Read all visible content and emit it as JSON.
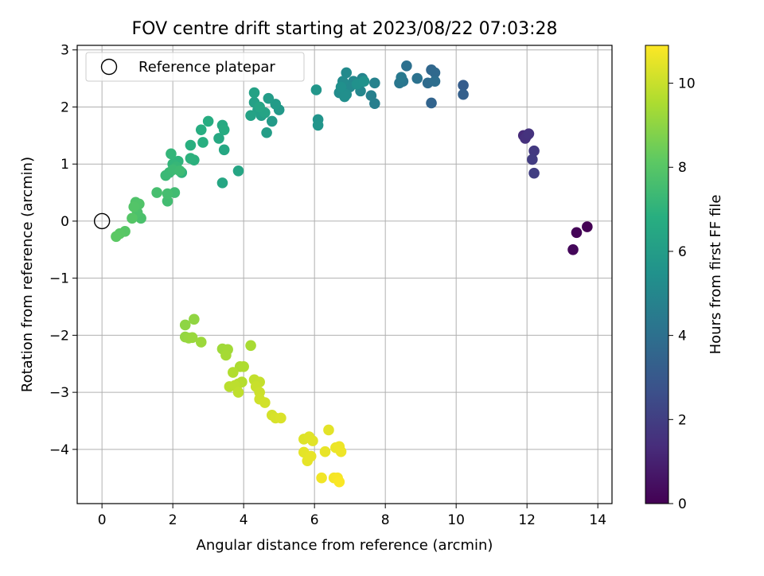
{
  "chart_data": {
    "type": "scatter",
    "title": "FOV centre drift starting at 2023/08/22 07:03:28",
    "xlabel": "Angular distance from reference (arcmin)",
    "ylabel": "Rotation from reference (arcmin)",
    "xlim": [
      -0.7,
      14.4
    ],
    "ylim": [
      -4.95,
      3.08
    ],
    "xticks": [
      0,
      2,
      4,
      6,
      8,
      10,
      12,
      14
    ],
    "yticks": [
      3,
      2,
      1,
      0,
      -1,
      -2,
      -3,
      -4
    ],
    "grid": true,
    "legend": {
      "placement": "top-left",
      "entries": [
        "Reference platepar"
      ]
    },
    "reference_point": {
      "x": 0,
      "y": 0,
      "label": "Reference platepar"
    },
    "colorbar": {
      "label": "Hours from first FF file",
      "range": [
        0,
        10.9
      ],
      "ticks": [
        0,
        2,
        4,
        6,
        8,
        10
      ],
      "colormap": "viridis"
    },
    "points": [
      {
        "x": 13.7,
        "y": -0.1,
        "c": 0.0
      },
      {
        "x": 13.4,
        "y": -0.2,
        "c": 0.1
      },
      {
        "x": 13.3,
        "y": -0.5,
        "c": 0.2
      },
      {
        "x": 11.9,
        "y": 1.5,
        "c": 1.3
      },
      {
        "x": 12.0,
        "y": 1.5,
        "c": 1.4
      },
      {
        "x": 11.95,
        "y": 1.45,
        "c": 1.5
      },
      {
        "x": 12.05,
        "y": 1.53,
        "c": 1.6
      },
      {
        "x": 12.2,
        "y": 1.23,
        "c": 1.8
      },
      {
        "x": 12.15,
        "y": 1.08,
        "c": 1.9
      },
      {
        "x": 12.2,
        "y": 0.84,
        "c": 2.0
      },
      {
        "x": 10.2,
        "y": 2.38,
        "c": 3.2
      },
      {
        "x": 10.2,
        "y": 2.22,
        "c": 3.3
      },
      {
        "x": 9.3,
        "y": 2.07,
        "c": 3.5
      },
      {
        "x": 9.3,
        "y": 2.65,
        "c": 3.6
      },
      {
        "x": 9.4,
        "y": 2.6,
        "c": 3.7
      },
      {
        "x": 9.2,
        "y": 2.42,
        "c": 3.8
      },
      {
        "x": 9.4,
        "y": 2.45,
        "c": 3.9
      },
      {
        "x": 8.6,
        "y": 2.72,
        "c": 4.0
      },
      {
        "x": 8.9,
        "y": 2.5,
        "c": 4.1
      },
      {
        "x": 8.5,
        "y": 2.45,
        "c": 4.2
      },
      {
        "x": 8.4,
        "y": 2.42,
        "c": 4.3
      },
      {
        "x": 8.45,
        "y": 2.52,
        "c": 4.4
      },
      {
        "x": 7.7,
        "y": 2.06,
        "c": 4.6
      },
      {
        "x": 7.6,
        "y": 2.2,
        "c": 4.7
      },
      {
        "x": 7.7,
        "y": 2.42,
        "c": 4.8
      },
      {
        "x": 7.35,
        "y": 2.5,
        "c": 4.9
      },
      {
        "x": 7.3,
        "y": 2.28,
        "c": 5.0
      },
      {
        "x": 7.1,
        "y": 2.45,
        "c": 5.05
      },
      {
        "x": 7.0,
        "y": 2.35,
        "c": 5.1
      },
      {
        "x": 6.9,
        "y": 2.6,
        "c": 5.15
      },
      {
        "x": 6.8,
        "y": 2.45,
        "c": 5.2
      },
      {
        "x": 6.7,
        "y": 2.25,
        "c": 5.25
      },
      {
        "x": 6.9,
        "y": 2.22,
        "c": 5.3
      },
      {
        "x": 6.85,
        "y": 2.18,
        "c": 5.35
      },
      {
        "x": 6.75,
        "y": 2.35,
        "c": 5.4
      },
      {
        "x": 7.2,
        "y": 2.4,
        "c": 5.45
      },
      {
        "x": 7.4,
        "y": 2.45,
        "c": 5.5
      },
      {
        "x": 6.1,
        "y": 1.78,
        "c": 5.6
      },
      {
        "x": 6.1,
        "y": 1.68,
        "c": 5.65
      },
      {
        "x": 6.05,
        "y": 2.3,
        "c": 5.7
      },
      {
        "x": 5.0,
        "y": 1.95,
        "c": 5.8
      },
      {
        "x": 4.8,
        "y": 1.75,
        "c": 5.85
      },
      {
        "x": 4.9,
        "y": 2.05,
        "c": 5.9
      },
      {
        "x": 4.7,
        "y": 2.15,
        "c": 5.95
      },
      {
        "x": 4.65,
        "y": 1.55,
        "c": 6.0
      },
      {
        "x": 4.5,
        "y": 1.85,
        "c": 6.05
      },
      {
        "x": 4.4,
        "y": 1.95,
        "c": 6.1
      },
      {
        "x": 4.3,
        "y": 2.08,
        "c": 6.15
      },
      {
        "x": 4.3,
        "y": 2.25,
        "c": 6.2
      },
      {
        "x": 4.2,
        "y": 1.85,
        "c": 6.25
      },
      {
        "x": 4.6,
        "y": 1.9,
        "c": 6.3
      },
      {
        "x": 4.45,
        "y": 2.0,
        "c": 6.35
      },
      {
        "x": 3.85,
        "y": 0.88,
        "c": 6.4
      },
      {
        "x": 3.4,
        "y": 0.67,
        "c": 6.45
      },
      {
        "x": 3.45,
        "y": 1.25,
        "c": 6.5
      },
      {
        "x": 3.3,
        "y": 1.45,
        "c": 6.55
      },
      {
        "x": 3.4,
        "y": 1.68,
        "c": 6.6
      },
      {
        "x": 3.45,
        "y": 1.6,
        "c": 6.65
      },
      {
        "x": 3.0,
        "y": 1.75,
        "c": 6.7
      },
      {
        "x": 2.8,
        "y": 1.6,
        "c": 6.75
      },
      {
        "x": 2.85,
        "y": 1.38,
        "c": 6.8
      },
      {
        "x": 2.5,
        "y": 1.33,
        "c": 6.85
      },
      {
        "x": 2.6,
        "y": 1.07,
        "c": 6.9
      },
      {
        "x": 2.5,
        "y": 1.1,
        "c": 6.95
      },
      {
        "x": 2.25,
        "y": 0.85,
        "c": 7.0
      },
      {
        "x": 2.15,
        "y": 1.05,
        "c": 7.05
      },
      {
        "x": 2.0,
        "y": 1.0,
        "c": 7.1
      },
      {
        "x": 1.95,
        "y": 1.18,
        "c": 7.15
      },
      {
        "x": 2.1,
        "y": 0.95,
        "c": 7.2
      },
      {
        "x": 1.9,
        "y": 0.85,
        "c": 7.25
      },
      {
        "x": 1.8,
        "y": 0.8,
        "c": 7.3
      },
      {
        "x": 2.0,
        "y": 0.9,
        "c": 7.35
      },
      {
        "x": 2.2,
        "y": 0.88,
        "c": 7.4
      },
      {
        "x": 2.05,
        "y": 0.5,
        "c": 7.45
      },
      {
        "x": 1.85,
        "y": 0.35,
        "c": 7.5
      },
      {
        "x": 1.85,
        "y": 0.48,
        "c": 7.55
      },
      {
        "x": 1.55,
        "y": 0.5,
        "c": 7.6
      },
      {
        "x": 1.1,
        "y": 0.05,
        "c": 7.7
      },
      {
        "x": 1.0,
        "y": 0.15,
        "c": 7.75
      },
      {
        "x": 0.95,
        "y": 0.33,
        "c": 7.8
      },
      {
        "x": 1.05,
        "y": 0.3,
        "c": 7.85
      },
      {
        "x": 0.9,
        "y": 0.25,
        "c": 7.9
      },
      {
        "x": 0.85,
        "y": 0.05,
        "c": 7.95
      },
      {
        "x": 0.65,
        "y": -0.18,
        "c": 8.0
      },
      {
        "x": 0.5,
        "y": -0.22,
        "c": 8.05
      },
      {
        "x": 0.4,
        "y": -0.27,
        "c": 8.1
      },
      {
        "x": 2.35,
        "y": -1.82,
        "c": 9.0
      },
      {
        "x": 2.6,
        "y": -1.72,
        "c": 9.05
      },
      {
        "x": 2.35,
        "y": -2.03,
        "c": 9.1
      },
      {
        "x": 2.45,
        "y": -2.05,
        "c": 9.15
      },
      {
        "x": 2.55,
        "y": -2.04,
        "c": 9.2
      },
      {
        "x": 2.8,
        "y": -2.12,
        "c": 9.25
      },
      {
        "x": 3.4,
        "y": -2.24,
        "c": 9.3
      },
      {
        "x": 3.55,
        "y": -2.25,
        "c": 9.35
      },
      {
        "x": 3.5,
        "y": -2.35,
        "c": 9.4
      },
      {
        "x": 4.2,
        "y": -2.18,
        "c": 9.45
      },
      {
        "x": 3.9,
        "y": -2.55,
        "c": 9.5
      },
      {
        "x": 4.0,
        "y": -2.55,
        "c": 9.55
      },
      {
        "x": 3.7,
        "y": -2.65,
        "c": 9.6
      },
      {
        "x": 3.95,
        "y": -2.82,
        "c": 9.65
      },
      {
        "x": 3.85,
        "y": -2.85,
        "c": 9.7
      },
      {
        "x": 3.6,
        "y": -2.9,
        "c": 9.75
      },
      {
        "x": 3.75,
        "y": -2.88,
        "c": 9.8
      },
      {
        "x": 3.85,
        "y": -3.0,
        "c": 9.85
      },
      {
        "x": 4.3,
        "y": -2.78,
        "c": 9.9
      },
      {
        "x": 4.45,
        "y": -2.82,
        "c": 9.95
      },
      {
        "x": 4.35,
        "y": -2.9,
        "c": 10.0
      },
      {
        "x": 4.45,
        "y": -3.0,
        "c": 10.05
      },
      {
        "x": 4.45,
        "y": -3.12,
        "c": 10.1
      },
      {
        "x": 4.6,
        "y": -3.18,
        "c": 10.15
      },
      {
        "x": 4.8,
        "y": -3.4,
        "c": 10.2
      },
      {
        "x": 4.9,
        "y": -3.45,
        "c": 10.25
      },
      {
        "x": 5.05,
        "y": -3.45,
        "c": 10.3
      },
      {
        "x": 5.7,
        "y": -3.82,
        "c": 10.35
      },
      {
        "x": 5.85,
        "y": -3.78,
        "c": 10.4
      },
      {
        "x": 5.95,
        "y": -3.85,
        "c": 10.42
      },
      {
        "x": 6.4,
        "y": -3.66,
        "c": 10.45
      },
      {
        "x": 5.7,
        "y": -4.05,
        "c": 10.48
      },
      {
        "x": 5.8,
        "y": -4.2,
        "c": 10.5
      },
      {
        "x": 5.9,
        "y": -4.12,
        "c": 10.52
      },
      {
        "x": 6.3,
        "y": -4.04,
        "c": 10.55
      },
      {
        "x": 6.6,
        "y": -3.97,
        "c": 10.6
      },
      {
        "x": 6.7,
        "y": -3.95,
        "c": 10.62
      },
      {
        "x": 6.75,
        "y": -4.04,
        "c": 10.65
      },
      {
        "x": 6.2,
        "y": -4.5,
        "c": 10.7
      },
      {
        "x": 6.55,
        "y": -4.5,
        "c": 10.75
      },
      {
        "x": 6.65,
        "y": -4.5,
        "c": 10.8
      },
      {
        "x": 6.7,
        "y": -4.57,
        "c": 10.85
      }
    ]
  }
}
